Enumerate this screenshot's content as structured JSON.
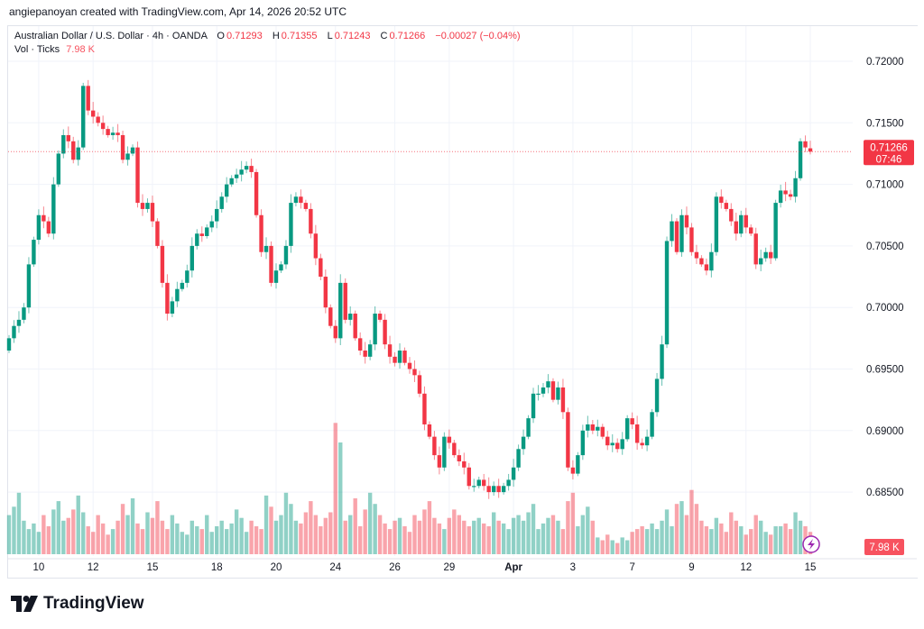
{
  "credit": "angiepanoyan created with TradingView.com, Apr 14, 2026 20:52 UTC",
  "legend": {
    "symbol": "Australian Dollar / U.S. Dollar · 4h · OANDA",
    "o_label": "O",
    "o": "0.71293",
    "h_label": "H",
    "h": "0.71355",
    "l_label": "L",
    "l": "0.71243",
    "c_label": "C",
    "c": "0.71266",
    "change": "−0.00027 (−0.04%)",
    "vol_label": "Vol · Ticks",
    "vol_value": "7.98 K"
  },
  "price_tag": {
    "price": "0.71266",
    "countdown": "07:46"
  },
  "volume_tag": "7.98 K",
  "logo_text": "TradingView",
  "colors": {
    "up": "#089981",
    "down": "#f23645",
    "grid": "#f0f3fa",
    "text": "#131722"
  },
  "chart_data": {
    "type": "candlestick",
    "title": "Australian Dollar / U.S. Dollar · 4h · OANDA",
    "ylim": [
      0.6836,
      0.7215
    ],
    "y_ticks": [
      "0.72000",
      "0.71500",
      "0.71000",
      "0.70500",
      "0.70000",
      "0.69500",
      "0.69000",
      "0.68500"
    ],
    "x_ticks": [
      {
        "label": "10",
        "bar": 6
      },
      {
        "label": "12",
        "bar": 17
      },
      {
        "label": "15",
        "bar": 29
      },
      {
        "label": "18",
        "bar": 42
      },
      {
        "label": "20",
        "bar": 54
      },
      {
        "label": "24",
        "bar": 66
      },
      {
        "label": "26",
        "bar": 78
      },
      {
        "label": "29",
        "bar": 89
      },
      {
        "label": "Apr",
        "bar": 102,
        "bold": true
      },
      {
        "label": "3",
        "bar": 114
      },
      {
        "label": "7",
        "bar": 126
      },
      {
        "label": "9",
        "bar": 138
      },
      {
        "label": "12",
        "bar": 149
      },
      {
        "label": "15",
        "bar": 162
      }
    ],
    "first_open": 0.6965,
    "last_bar": {
      "open": 0.71293,
      "high": 0.71355,
      "low": 0.71243,
      "close": 0.71266
    },
    "closes": [
      0.6975,
      0.6985,
      0.699,
      0.7,
      0.7035,
      0.7055,
      0.7075,
      0.707,
      0.706,
      0.71,
      0.7125,
      0.714,
      0.7135,
      0.712,
      0.713,
      0.718,
      0.716,
      0.7155,
      0.715,
      0.7145,
      0.714,
      0.7142,
      0.714,
      0.712,
      0.7125,
      0.713,
      0.7085,
      0.708,
      0.7085,
      0.707,
      0.705,
      0.702,
      0.6995,
      0.7005,
      0.7015,
      0.702,
      0.703,
      0.705,
      0.706,
      0.7058,
      0.7065,
      0.707,
      0.708,
      0.709,
      0.71,
      0.7105,
      0.7108,
      0.7112,
      0.7115,
      0.711,
      0.7075,
      0.7045,
      0.705,
      0.702,
      0.703,
      0.7035,
      0.705,
      0.7085,
      0.709,
      0.7085,
      0.708,
      0.706,
      0.704,
      0.7025,
      0.7,
      0.6985,
      0.6975,
      0.702,
      0.699,
      0.6995,
      0.6975,
      0.6965,
      0.696,
      0.697,
      0.6995,
      0.699,
      0.697,
      0.696,
      0.6955,
      0.6965,
      0.6955,
      0.695,
      0.6945,
      0.693,
      0.6905,
      0.6895,
      0.688,
      0.687,
      0.6895,
      0.689,
      0.688,
      0.6875,
      0.687,
      0.6855,
      0.6855,
      0.686,
      0.6855,
      0.685,
      0.6855,
      0.685,
      0.6855,
      0.686,
      0.687,
      0.6885,
      0.6895,
      0.691,
      0.693,
      0.693,
      0.6935,
      0.694,
      0.6925,
      0.6935,
      0.6915,
      0.687,
      0.6865,
      0.688,
      0.69,
      0.6905,
      0.69,
      0.6903,
      0.6895,
      0.6888,
      0.689,
      0.6885,
      0.6893,
      0.691,
      0.6905,
      0.689,
      0.6888,
      0.6895,
      0.6915,
      0.6942,
      0.697,
      0.7054,
      0.707,
      0.7045,
      0.7075,
      0.7065,
      0.7045,
      0.704,
      0.7035,
      0.703,
      0.7045,
      0.709,
      0.7085,
      0.708,
      0.707,
      0.706,
      0.7075,
      0.7065,
      0.706,
      0.7035,
      0.704,
      0.7045,
      0.704,
      0.7085,
      0.7095,
      0.7092,
      0.709,
      0.7105,
      0.7135,
      0.713,
      0.71266
    ],
    "volume_k": [
      14,
      17,
      22,
      12,
      9,
      11,
      8,
      14,
      10,
      16,
      19,
      12,
      13,
      16,
      21,
      15,
      10,
      8,
      14,
      11,
      7,
      9,
      12,
      18,
      14,
      20,
      11,
      9,
      15,
      13,
      19,
      12,
      9,
      14,
      11,
      8,
      7,
      12,
      10,
      9,
      14,
      8,
      10,
      12,
      9,
      11,
      16,
      13,
      8,
      12,
      10,
      9,
      21,
      17,
      12,
      14,
      22,
      18,
      12,
      11,
      15,
      19,
      14,
      10,
      13,
      15,
      47,
      40,
      12,
      14,
      20,
      10,
      16,
      22,
      18,
      14,
      11,
      9,
      12,
      13,
      10,
      8,
      14,
      12,
      16,
      19,
      13,
      11,
      9,
      13,
      16,
      14,
      12,
      10,
      12,
      13,
      11,
      10,
      15,
      12,
      11,
      9,
      13,
      14,
      12,
      15,
      18,
      9,
      11,
      13,
      14,
      12,
      9,
      19,
      22,
      10,
      14,
      17,
      12,
      6,
      5,
      7,
      5,
      4,
      6,
      5,
      8,
      9,
      10,
      9,
      11,
      9,
      12,
      16,
      10,
      18,
      19,
      14,
      23,
      18,
      12,
      10,
      9,
      13,
      11,
      8,
      15,
      12,
      10,
      7,
      9,
      14,
      12,
      8,
      7,
      10,
      10,
      11,
      9,
      15,
      12,
      10,
      7.98
    ]
  }
}
